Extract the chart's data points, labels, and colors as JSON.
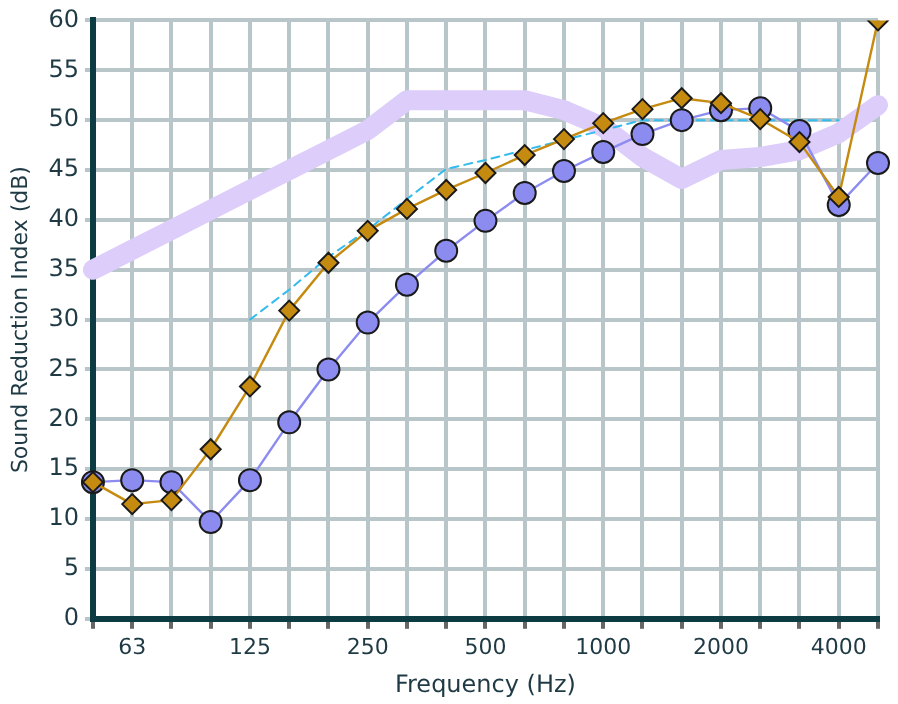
{
  "chart_data": {
    "type": "line",
    "xlabel": "Frequency (Hz)",
    "ylabel": "Sound Reduction Index (dB)",
    "categories": [
      null,
      "63",
      null,
      null,
      "125",
      null,
      null,
      "250",
      null,
      null,
      "500",
      null,
      null,
      "1000",
      null,
      null,
      "2000",
      null,
      null,
      "4000",
      null
    ],
    "series": [
      {
        "color": "#c58a10",
        "marker": "diamond",
        "line_style": "solid",
        "values": [
          13.7,
          11.5,
          11.9,
          17,
          23.3,
          30.9,
          35.7,
          38.9,
          41.1,
          43,
          44.7,
          46.5,
          48.1,
          49.7,
          51.1,
          52.2,
          51.7,
          50.1,
          47.8,
          42.3,
          60
        ]
      },
      {
        "color": "#8c8cf0",
        "marker": "circle",
        "line_style": "solid",
        "values": [
          13.7,
          13.9,
          13.7,
          9.7,
          13.9,
          19.7,
          25,
          29.7,
          33.5,
          36.9,
          39.9,
          42.7,
          44.9,
          46.8,
          48.6,
          50,
          51,
          51.2,
          48.9,
          41.5,
          45.7
        ]
      },
      {
        "color": "#33bbee",
        "marker": "none",
        "line_style": "dashed",
        "values": [
          null,
          null,
          null,
          null,
          30,
          33,
          36.3,
          39,
          42.1,
          45.1,
          46,
          47,
          48,
          49,
          50,
          50,
          50,
          50,
          50,
          50,
          null
        ]
      },
      {
        "color": "#dccdfa",
        "marker": "none",
        "line_style": "solid",
        "values": [
          35,
          37,
          39,
          41,
          43,
          45,
          47,
          49,
          52,
          52,
          52,
          52,
          51,
          49.3,
          46.3,
          44.1,
          46,
          46.3,
          47,
          48.7,
          51.5
        ]
      }
    ],
    "ylim": [
      0,
      60
    ],
    "yticks": [
      0,
      5,
      10,
      15,
      20,
      25,
      30,
      35,
      40,
      45,
      50,
      55,
      60
    ],
    "grid": true,
    "legend": false
  }
}
